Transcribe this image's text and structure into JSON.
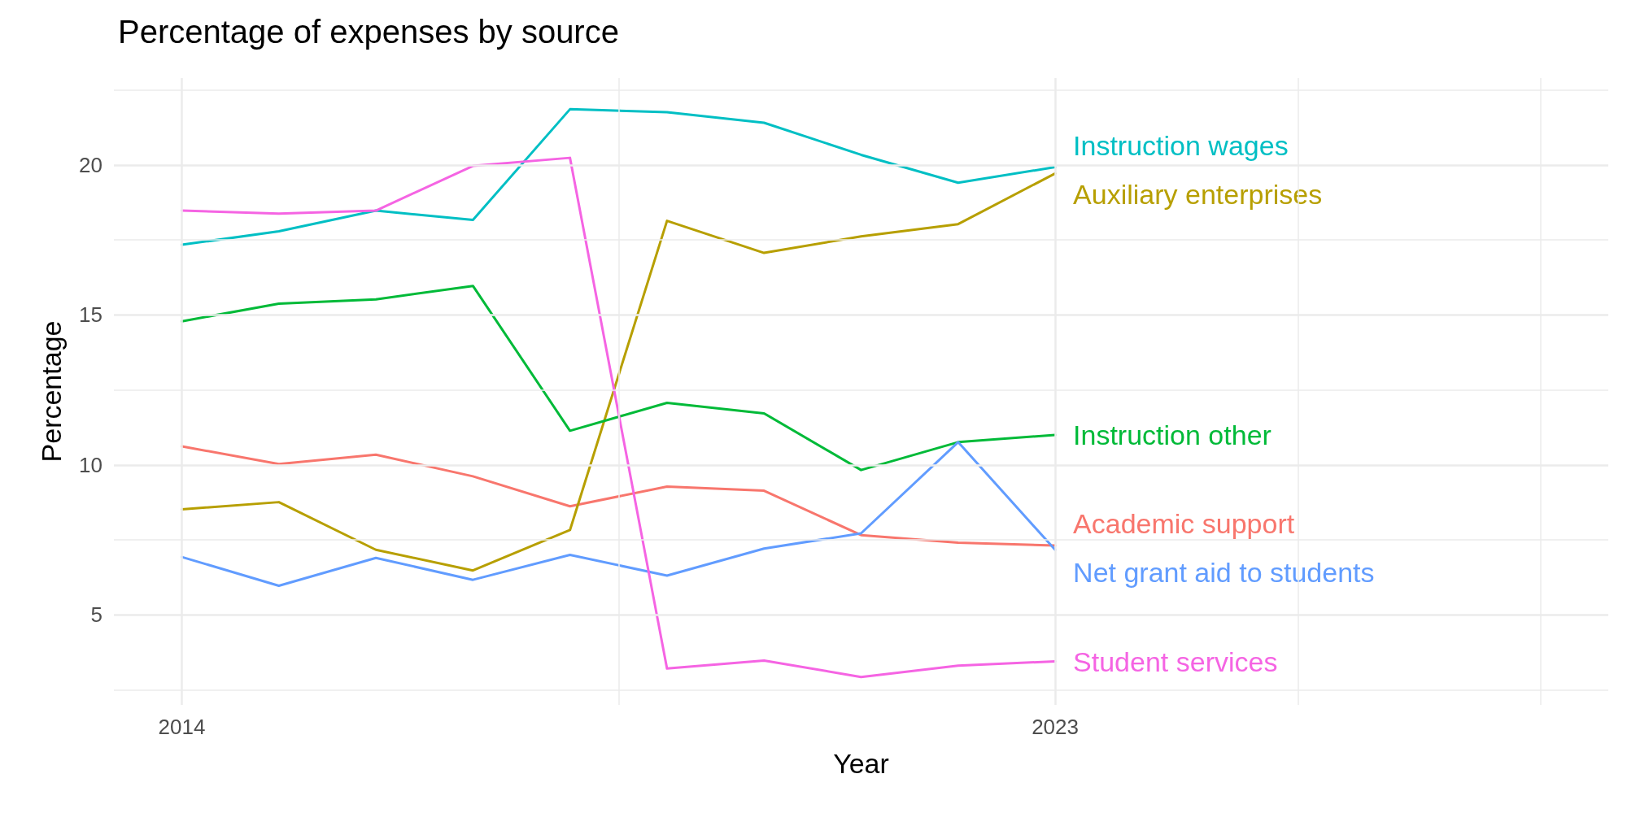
{
  "chart_data": {
    "type": "line",
    "title": "Percentage of expenses by source",
    "xlabel": "Year",
    "ylabel": "Percentage",
    "x": [
      2014,
      2015,
      2016,
      2017,
      2018,
      2019,
      2020,
      2021,
      2022,
      2023
    ],
    "series": [
      {
        "name": "Academic support",
        "color": "#f8766d",
        "values": [
          10.62,
          10.03,
          10.34,
          9.62,
          8.62,
          9.28,
          9.14,
          7.66,
          7.41,
          7.31
        ]
      },
      {
        "name": "Auxiliary enterprises",
        "color": "#b79f00",
        "values": [
          8.52,
          8.76,
          7.17,
          6.48,
          7.83,
          18.14,
          17.07,
          17.62,
          18.03,
          19.72
        ]
      },
      {
        "name": "Instruction other",
        "color": "#00ba38",
        "values": [
          14.79,
          15.38,
          15.52,
          15.97,
          11.14,
          12.07,
          11.72,
          9.83,
          10.76,
          11.0
        ]
      },
      {
        "name": "Instruction wages",
        "color": "#00bfc4",
        "values": [
          17.34,
          17.79,
          18.48,
          18.17,
          21.86,
          21.76,
          21.41,
          20.34,
          19.41,
          19.93
        ]
      },
      {
        "name": "Net grant aid to students",
        "color": "#619cff",
        "values": [
          6.93,
          5.97,
          6.9,
          6.17,
          7.0,
          6.31,
          7.21,
          7.72,
          10.76,
          7.17
        ]
      },
      {
        "name": "Student services",
        "color": "#f564e3",
        "values": [
          18.48,
          18.38,
          18.48,
          19.97,
          20.24,
          3.21,
          3.48,
          2.93,
          3.31,
          3.45
        ]
      }
    ],
    "xlim": [
      2013.3,
      2028.7
    ],
    "xticks": [
      2014,
      {
        "value": 2018.5,
        "label": null
      },
      2023,
      {
        "value": 2025.5,
        "label": null
      },
      {
        "value": 2028,
        "label": null
      }
    ],
    "ylim": [
      2,
      22.9
    ],
    "yticks": [
      {
        "value": 2.5,
        "label": null
      },
      5,
      {
        "value": 7.5,
        "label": null
      },
      10,
      {
        "value": 12.5,
        "label": null
      },
      15,
      {
        "value": 17.5,
        "label": null
      },
      20,
      {
        "value": 22.5,
        "label": null
      }
    ],
    "grid": true,
    "marker": "none",
    "line_style": "solid"
  }
}
